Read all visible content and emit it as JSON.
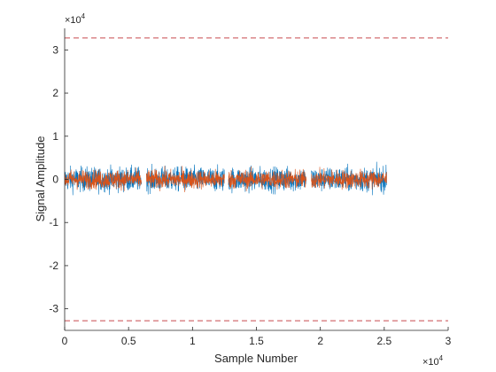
{
  "chart_data": {
    "type": "line",
    "title": "",
    "xlabel": "Sample Number",
    "ylabel": "Signal Amplitude",
    "x_multiplier": "×10",
    "x_multiplier_exp": "4",
    "y_multiplier": "×10",
    "y_multiplier_exp": "4",
    "xlim": [
      0,
      30000
    ],
    "ylim": [
      -35000,
      35000
    ],
    "x_ticks": [
      0,
      5000,
      10000,
      15000,
      20000,
      25000,
      30000
    ],
    "x_tick_labels": [
      "0",
      "0.5",
      "1",
      "1.5",
      "2",
      "2.5",
      "3"
    ],
    "y_ticks": [
      -30000,
      -20000,
      -10000,
      0,
      10000,
      20000,
      30000
    ],
    "y_tick_labels": [
      "-3",
      "-2",
      "-1",
      "0",
      "1",
      "2",
      "3"
    ],
    "grid": false,
    "series": [
      {
        "color": "#0072BD",
        "segments": [
          [
            0,
            6000
          ],
          [
            6400,
            12500
          ],
          [
            12800,
            18900
          ],
          [
            19300,
            25200
          ]
        ],
        "typical_amplitude": 3300,
        "peak_amplitude": 4500
      },
      {
        "color": "#D95319",
        "segments": [
          [
            0,
            6000
          ],
          [
            6400,
            12500
          ],
          [
            12800,
            18900
          ],
          [
            19300,
            25200
          ]
        ],
        "typical_amplitude": 2600,
        "peak_amplitude": 4300
      }
    ],
    "reference_lines": [
      {
        "y": 32767,
        "color": "#C8494E",
        "style": "dashed"
      },
      {
        "y": -32767,
        "color": "#C8494E",
        "style": "dashed"
      }
    ]
  }
}
